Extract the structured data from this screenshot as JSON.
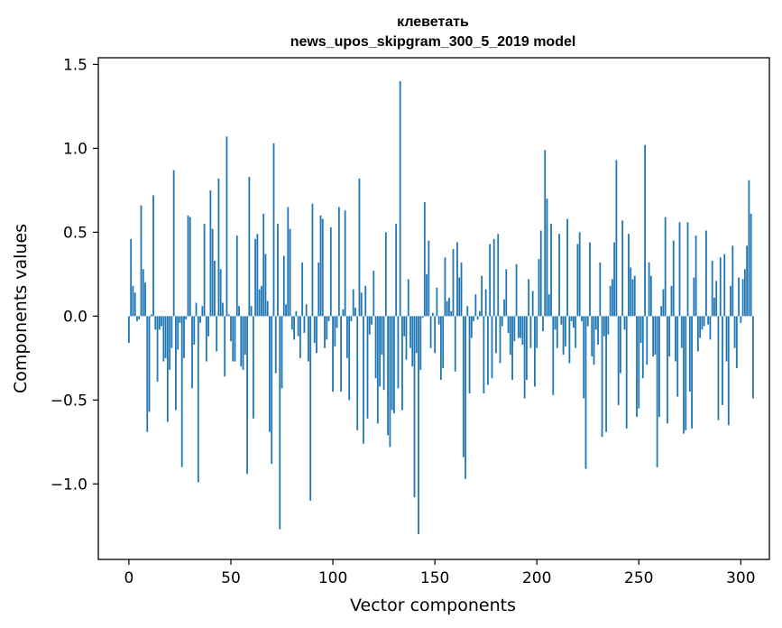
{
  "chart_data": {
    "type": "bar",
    "title": "клеветать",
    "subtitle": "news_upos_skipgram_300_5_2019 model",
    "xlabel": "Vector components",
    "ylabel": "Components values",
    "xlim": [
      -15,
      314
    ],
    "ylim": [
      -1.45,
      1.54
    ],
    "xticks": [
      0,
      50,
      100,
      150,
      200,
      250,
      300
    ],
    "yticks": [
      -1.0,
      -0.5,
      0.0,
      0.5,
      1.0,
      1.5
    ],
    "ytick_labels": [
      "−1.0",
      "−0.5",
      "0.0",
      "0.5",
      "1.0",
      "1.5"
    ],
    "grid": false,
    "color": "#1f77b4",
    "values": [
      -0.16,
      0.46,
      0.18,
      0.14,
      -0.03,
      -0.02,
      0.66,
      0.28,
      0.2,
      -0.69,
      -0.57,
      0.01,
      0.72,
      -0.08,
      -0.39,
      -0.08,
      -0.06,
      -0.27,
      -0.25,
      -0.63,
      -0.32,
      -0.19,
      0.87,
      -0.56,
      -0.2,
      -0.04,
      -0.9,
      -0.25,
      -0.02,
      0.6,
      0.59,
      -0.43,
      -0.17,
      0.08,
      -0.99,
      -0.04,
      0.06,
      0.55,
      -0.27,
      -0.12,
      0.75,
      0.52,
      0.33,
      -0.21,
      0.82,
      0.28,
      0.08,
      -0.36,
      1.07,
      0.01,
      -0.15,
      -0.27,
      -0.27,
      0.48,
      0.06,
      -0.3,
      -0.32,
      -0.23,
      -0.94,
      0.83,
      0.06,
      -0.61,
      0.46,
      0.49,
      0.16,
      0.18,
      0.61,
      0.37,
      0.09,
      -0.69,
      -0.88,
      1.03,
      -0.34,
      0.55,
      -1.27,
      -0.43,
      0.36,
      0.07,
      0.65,
      0.52,
      -0.08,
      -0.14,
      0.03,
      -0.12,
      -0.25,
      0.32,
      -0.1,
      0.07,
      -0.27,
      -1.1,
      0.67,
      -0.16,
      -0.22,
      0.32,
      0.6,
      0.58,
      -0.19,
      -0.14,
      -0.03,
      0.53,
      -0.45,
      -0.18,
      -0.07,
      0.65,
      -0.45,
      0.04,
      0.63,
      -0.25,
      -0.5,
      -0.03,
      0.16,
      0.05,
      -0.68,
      0.82,
      0.14,
      -0.76,
      0.18,
      -0.61,
      -0.11,
      -0.05,
      0.27,
      -0.37,
      -0.64,
      -0.42,
      -0.23,
      -0.44,
      0.5,
      -0.71,
      -0.78,
      -0.56,
      -0.58,
      0.55,
      -0.43,
      1.4,
      -0.56,
      -0.12,
      -0.26,
      0.22,
      -0.19,
      -0.3,
      -1.08,
      -0.22,
      -1.3,
      -0.32,
      -0.01,
      0.68,
      0.25,
      0.45,
      -0.19,
      0.02,
      -0.22,
      0.17,
      -0.05,
      -0.38,
      -0.31,
      0.35,
      0.09,
      0.11,
      0.03,
      0.4,
      -0.33,
      0.44,
      0.23,
      0.32,
      -0.84,
      -0.97,
      0.06,
      -0.46,
      -0.13,
      -0.03,
      0.13,
      -0.02,
      0.03,
      0.24,
      -0.46,
      0.16,
      -0.41,
      0.43,
      -0.37,
      0.46,
      -0.22,
      0.49,
      -0.28,
      -0.06,
      0.1,
      0.28,
      -0.1,
      -0.23,
      -0.38,
      -0.15,
      0.31,
      -0.13,
      -0.13,
      -0.17,
      -0.49,
      -0.38,
      0.22,
      -0.19,
      0.15,
      -0.42,
      -0.19,
      0.34,
      0.51,
      -0.09,
      0.99,
      0.7,
      0.13,
      0.55,
      -0.47,
      -0.08,
      -0.19,
      0.49,
      -0.05,
      -0.23,
      -0.18,
      0.58,
      -0.28,
      -0.03,
      -0.07,
      -0.19,
      0.43,
      0.5,
      -0.03,
      -0.49,
      -0.91,
      -0.06,
      0.44,
      -0.24,
      -0.29,
      -0.08,
      -0.17,
      0.32,
      -0.72,
      -0.12,
      -0.69,
      -0.11,
      0.18,
      0.22,
      0.44,
      0.93,
      -0.53,
      -0.34,
      0.57,
      -0.08,
      -0.67,
      0.49,
      0.29,
      0.22,
      0.24,
      -0.6,
      -0.55,
      -0.16,
      -0.37,
      1.02,
      -0.29,
      0.32,
      0.24,
      -0.24,
      -0.23,
      -0.9,
      -0.6,
      0.06,
      0.16,
      0.59,
      -0.64,
      -0.24,
      0.18,
      0.45,
      -0.27,
      -0.48,
      0.56,
      -0.19,
      -0.7,
      -0.68,
      0.56,
      -0.45,
      -0.67,
      0.23,
      0.48,
      -0.21,
      -0.13,
      -0.08,
      -0.06,
      0.51,
      -0.05,
      -0.14,
      0.33,
      0.11,
      0.21,
      -0.62,
      0.35,
      -0.53,
      0.37,
      -0.27,
      -0.65,
      0.18,
      0.42,
      -0.19,
      -0.31,
      0.23,
      -0.04,
      0.22,
      0.28,
      0.42,
      0.81,
      0.61,
      -0.49
    ]
  }
}
